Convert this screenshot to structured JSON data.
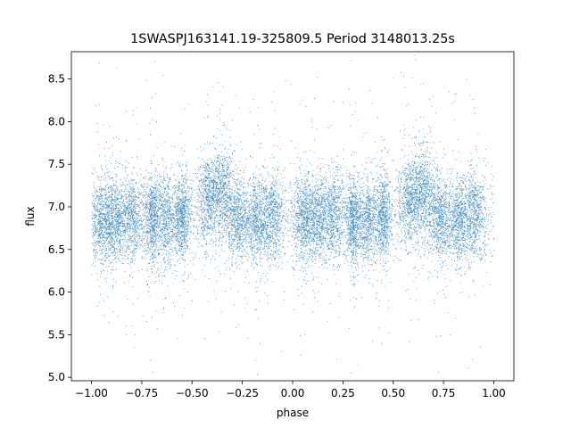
{
  "chart_data": {
    "type": "scatter",
    "title": "1SWASPJ163141.19-325809.5 Period 3148013.25s",
    "xlabel": "phase",
    "ylabel": "flux",
    "xlim": [
      -1.1,
      1.1
    ],
    "ylim": [
      4.96,
      8.82
    ],
    "xticks": [
      -1.0,
      -0.75,
      -0.5,
      -0.25,
      0.0,
      0.25,
      0.5,
      0.75,
      1.0
    ],
    "xtick_labels": [
      "−1.00",
      "−0.75",
      "−0.50",
      "−0.25",
      "0.00",
      "0.25",
      "0.50",
      "0.75",
      "1.00"
    ],
    "yticks": [
      5.0,
      5.5,
      6.0,
      6.5,
      7.0,
      7.5,
      8.0,
      8.5
    ],
    "ytick_labels": [
      "5.0",
      "5.5",
      "6.0",
      "6.5",
      "7.0",
      "7.5",
      "8.0",
      "8.5"
    ],
    "grid": false,
    "marker_color": "#1f77b4",
    "series": [
      {
        "description_of_distribution": "dense point cloud, periodic with period 1 in phase; baseline flux ~6.85 with scatter ~0.25, brightening bursts near phase -0.42..-0.32 (and +0.58..+0.68) reaching ~7.7, clumped in vertical stripes",
        "baseline": 6.85,
        "scatter": 0.25,
        "clusters": [
          {
            "phase": -0.95,
            "spread": 0.03,
            "center": 6.85
          },
          {
            "phase": -0.88,
            "spread": 0.03,
            "center": 6.85
          },
          {
            "phase": -0.8,
            "spread": 0.03,
            "center": 6.9
          },
          {
            "phase": -0.7,
            "spread": 0.02,
            "center": 6.85
          },
          {
            "phase": -0.63,
            "spread": 0.03,
            "center": 6.85
          },
          {
            "phase": -0.55,
            "spread": 0.02,
            "center": 6.9
          },
          {
            "phase": -0.42,
            "spread": 0.03,
            "center": 7.1
          },
          {
            "phase": -0.35,
            "spread": 0.03,
            "center": 7.2
          },
          {
            "phase": -0.27,
            "spread": 0.03,
            "center": 6.85
          },
          {
            "phase": -0.18,
            "spread": 0.03,
            "center": 6.85
          },
          {
            "phase": -0.1,
            "spread": 0.03,
            "center": 6.9
          },
          {
            "phase": 0.05,
            "spread": 0.03,
            "center": 6.85
          },
          {
            "phase": 0.12,
            "spread": 0.03,
            "center": 6.85
          },
          {
            "phase": 0.2,
            "spread": 0.03,
            "center": 6.9
          },
          {
            "phase": 0.3,
            "spread": 0.02,
            "center": 6.85
          },
          {
            "phase": 0.37,
            "spread": 0.03,
            "center": 6.85
          },
          {
            "phase": 0.45,
            "spread": 0.02,
            "center": 6.9
          },
          {
            "phase": 0.58,
            "spread": 0.03,
            "center": 7.1
          },
          {
            "phase": 0.65,
            "spread": 0.03,
            "center": 7.2
          },
          {
            "phase": 0.73,
            "spread": 0.03,
            "center": 6.85
          },
          {
            "phase": 0.82,
            "spread": 0.03,
            "center": 6.85
          },
          {
            "phase": 0.9,
            "spread": 0.03,
            "center": 6.9
          }
        ]
      }
    ]
  }
}
